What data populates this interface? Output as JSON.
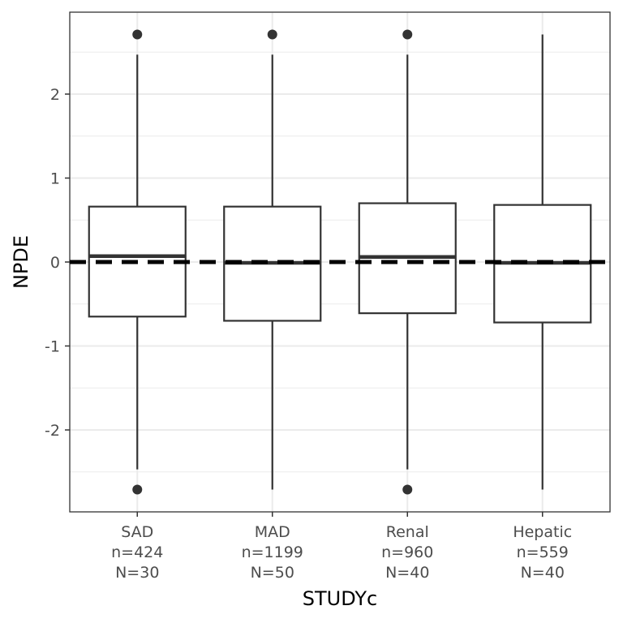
{
  "chart_data": {
    "type": "box",
    "xlabel": "STUDYc",
    "ylabel": "NPDE",
    "ylim": [
      -2.98,
      2.98
    ],
    "yticks": [
      "-2",
      "-1",
      "0",
      "1",
      "2"
    ],
    "grid": true,
    "reference_line": 0,
    "categories": [
      {
        "label": "SAD",
        "n": "n=424",
        "N": "N=30"
      },
      {
        "label": "MAD",
        "n": "n=1199",
        "N": "N=50"
      },
      {
        "label": "Renal",
        "n": "n=960",
        "N": "N=40"
      },
      {
        "label": "Hepatic",
        "n": "n=559",
        "N": "N=40"
      }
    ],
    "boxes": [
      {
        "whisker_low": -2.47,
        "q1": -0.65,
        "median": 0.07,
        "q3": 0.66,
        "whisker_high": 2.47,
        "outliers": [
          2.71,
          -2.71
        ]
      },
      {
        "whisker_low": -2.71,
        "q1": -0.7,
        "median": -0.01,
        "q3": 0.66,
        "whisker_high": 2.47,
        "outliers": [
          2.71
        ]
      },
      {
        "whisker_low": -2.47,
        "q1": -0.61,
        "median": 0.06,
        "q3": 0.7,
        "whisker_high": 2.47,
        "outliers": [
          2.71,
          -2.71
        ]
      },
      {
        "whisker_low": -2.71,
        "q1": -0.72,
        "median": -0.01,
        "q3": 0.68,
        "whisker_high": 2.71,
        "outliers": []
      }
    ]
  }
}
